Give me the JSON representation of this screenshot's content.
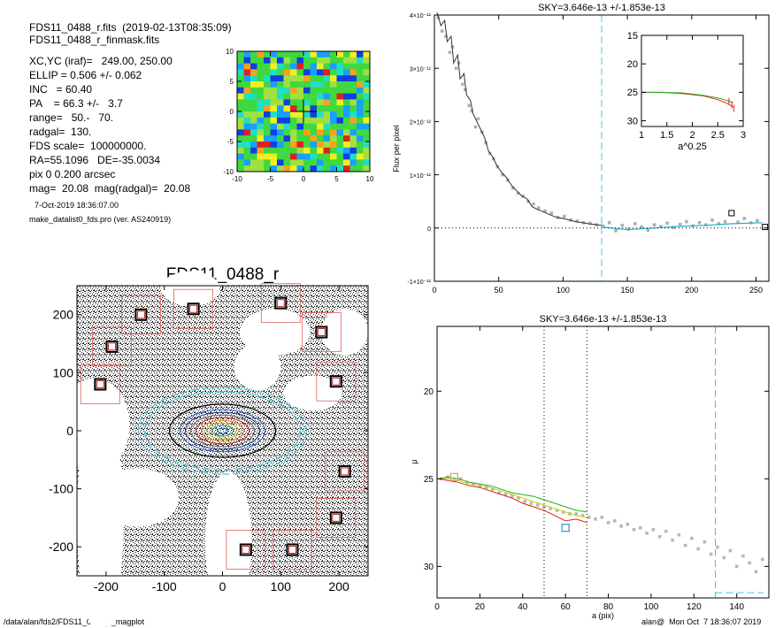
{
  "header": {
    "file_line": "FDS11_0488_r.fits  (2019-02-13T08:35:09)",
    "mask_line": "FDS11_0488_r_finmask.fits",
    "params": [
      "XC,YC (iraf)=   249.00, 250.00",
      "ELLIP = 0.506 +/- 0.062",
      "INC   = 60.40",
      "PA    = 66.3 +/-   3.7",
      "range=   50.-   70.",
      "radgal=  130.",
      "FDS scale=  100000000.",
      "RA=55.1096   DE=-35.0034",
      "pix 0 0.200 arcsec",
      "mag=  20.08  mag(radgal)=  20.08"
    ],
    "date_line": "7-Oct-2019 18:36:07.00",
    "program_line": "make_datalist0_fds.pro (ver. AS240919)"
  },
  "footer": {
    "path": "/data/alan/fds2/FDS11_0488_r_magplot",
    "user_stamp": "alan@  Mon Oct  7 18:36:07 2019"
  },
  "chart_data": [
    {
      "type": "heatmap",
      "id": "psf-map",
      "xlim": [
        -10,
        10
      ],
      "ylim": [
        -10,
        10
      ],
      "xticks": [
        -10,
        -5,
        0,
        5,
        10
      ],
      "yticks": [
        -10,
        -5,
        0,
        5,
        10
      ],
      "colors": [
        "#1040e0",
        "#18a0ff",
        "#20e0c0",
        "#40d840",
        "#a0e040",
        "#f0f020",
        "#f8a020",
        "#e02020"
      ]
    },
    {
      "type": "scatter",
      "id": "sky-profile",
      "title": "SKY=3.646e-13 +/-1.853e-13",
      "ylabel": "Flux per pixel",
      "xlim": [
        0,
        260
      ],
      "ylim": [
        -1e-12,
        4e-12
      ],
      "xticks": [
        0,
        50,
        100,
        150,
        200,
        250
      ],
      "yticks": [
        {
          "v": -1e-12,
          "label": "-1×10⁻¹²"
        },
        {
          "v": 0,
          "label": "0"
        },
        {
          "v": 1e-12,
          "label": "1×10⁻¹²"
        },
        {
          "v": 2e-12,
          "label": "2×10⁻¹²"
        },
        {
          "v": 3e-12,
          "label": "3×10⁻¹²"
        },
        {
          "v": 4e-12,
          "label": "4×10⁻¹²"
        }
      ],
      "sky_radius": 130,
      "line": [
        [
          2,
          4.05e-12
        ],
        [
          5,
          3.8e-12
        ],
        [
          8,
          3.9e-12
        ],
        [
          10,
          3.5e-12
        ],
        [
          13,
          3.6e-12
        ],
        [
          15,
          3.1e-12
        ],
        [
          18,
          3.25e-12
        ],
        [
          20,
          2.8e-12
        ],
        [
          23,
          2.9e-12
        ],
        [
          25,
          2.5e-12
        ],
        [
          28,
          2.4e-12
        ],
        [
          30,
          2.15e-12
        ],
        [
          33,
          2e-12
        ],
        [
          36,
          1.85e-12
        ],
        [
          39,
          1.7e-12
        ],
        [
          42,
          1.45e-12
        ],
        [
          45,
          1.35e-12
        ],
        [
          48,
          1.2e-12
        ],
        [
          52,
          1.05e-12
        ],
        [
          56,
          9.5e-13
        ],
        [
          60,
          8e-13
        ],
        [
          64,
          7e-13
        ],
        [
          68,
          6e-13
        ],
        [
          72,
          5.5e-13
        ],
        [
          76,
          4e-13
        ],
        [
          80,
          3.5e-13
        ],
        [
          85,
          3e-13
        ],
        [
          90,
          2.5e-13
        ],
        [
          95,
          2e-13
        ],
        [
          100,
          1.8e-13
        ],
        [
          110,
          1.2e-13
        ],
        [
          120,
          8e-14
        ],
        [
          130,
          5e-14
        ]
      ],
      "sky_line": [
        [
          130,
          2e-14
        ],
        [
          150,
          -3e-14
        ],
        [
          170,
          0.0
        ],
        [
          190,
          3e-14
        ],
        [
          210,
          5e-14
        ],
        [
          230,
          8e-14
        ],
        [
          255,
          1e-13
        ]
      ],
      "points": [
        [
          3,
          3.95e-12
        ],
        [
          6,
          3.7e-12
        ],
        [
          9,
          3.6e-12
        ],
        [
          12,
          3.3e-12
        ],
        [
          14,
          3.4e-12
        ],
        [
          17,
          3e-12
        ],
        [
          19,
          3.1e-12
        ],
        [
          22,
          2.7e-12
        ],
        [
          24,
          2.6e-12
        ],
        [
          27,
          2.3e-12
        ],
        [
          29,
          2.2e-12
        ],
        [
          32,
          1.9e-12
        ],
        [
          34,
          2.05e-12
        ],
        [
          37,
          1.8e-12
        ],
        [
          40,
          1.6e-12
        ],
        [
          43,
          1.4e-12
        ],
        [
          46,
          1.3e-12
        ],
        [
          49,
          1.15e-12
        ],
        [
          53,
          1e-12
        ],
        [
          57,
          9e-13
        ],
        [
          61,
          7.5e-13
        ],
        [
          65,
          6.5e-13
        ],
        [
          69,
          6e-13
        ],
        [
          73,
          5e-13
        ],
        [
          77,
          4.5e-13
        ],
        [
          81,
          3.8e-13
        ],
        [
          86,
          3.2e-13
        ],
        [
          91,
          2.8e-13
        ],
        [
          96,
          2e-13
        ],
        [
          101,
          2.2e-13
        ],
        [
          106,
          1.5e-13
        ],
        [
          111,
          1.3e-13
        ],
        [
          116,
          1e-13
        ],
        [
          121,
          9e-14
        ],
        [
          126,
          6e-14
        ],
        [
          131,
          4e-14
        ],
        [
          136,
          1e-13
        ],
        [
          141,
          -5e-14
        ],
        [
          146,
          5e-14
        ],
        [
          151,
          -2e-14
        ],
        [
          156,
          8e-14
        ],
        [
          161,
          2e-14
        ],
        [
          166,
          -4e-14
        ],
        [
          171,
          6e-14
        ],
        [
          176,
          3e-14
        ],
        [
          181,
          9e-14
        ],
        [
          186,
          1e-14
        ],
        [
          191,
          7e-14
        ],
        [
          196,
          1.2e-13
        ],
        [
          201,
          4e-14
        ],
        [
          206,
          1e-13
        ],
        [
          211,
          6e-14
        ],
        [
          216,
          1.5e-13
        ],
        [
          221,
          8e-14
        ],
        [
          226,
          1.2e-13
        ],
        [
          236,
          1.1e-13
        ],
        [
          241,
          1.8e-13
        ],
        [
          246,
          1e-13
        ],
        [
          251,
          1.4e-13
        ]
      ],
      "outliers": [
        [
          231,
          2.8e-13
        ],
        [
          257,
          2e-14
        ]
      ]
    },
    {
      "type": "line",
      "id": "inset-profile",
      "xlabel": "a^0.25",
      "xlim": [
        1.0,
        3.0
      ],
      "ylim": [
        15,
        31
      ],
      "xticks": [
        1.0,
        1.5,
        2.0,
        2.5,
        3.0
      ],
      "yticks": [
        15,
        20,
        25,
        30
      ],
      "series": [
        {
          "color": "#e02020",
          "values": [
            [
              1.0,
              25.0
            ],
            [
              1.4,
              25.0
            ],
            [
              1.8,
              25.2
            ],
            [
              2.2,
              25.6
            ],
            [
              2.5,
              26.3
            ],
            [
              2.7,
              27.0
            ],
            [
              2.8,
              27.6
            ]
          ]
        },
        {
          "color": "#20b020",
          "values": [
            [
              1.0,
              25.0
            ],
            [
              1.4,
              25.0
            ],
            [
              1.8,
              25.1
            ],
            [
              2.2,
              25.5
            ],
            [
              2.5,
              26.0
            ],
            [
              2.7,
              26.5
            ],
            [
              2.8,
              26.8
            ]
          ]
        }
      ]
    },
    {
      "type": "scatter",
      "id": "mu-profile",
      "title": "SKY=3.646e-13 +/-1.853e-13",
      "xlabel": "a (pix)",
      "ylabel": "μ",
      "xlim": [
        0,
        155
      ],
      "ylim": [
        31.8,
        16.3
      ],
      "xticks": [
        0,
        20,
        40,
        60,
        80,
        100,
        120,
        140
      ],
      "yticks": [
        20,
        25,
        30
      ],
      "range_lines": [
        50,
        70
      ],
      "sky_radius": 130,
      "sky_level": 31.5,
      "points": [
        [
          2,
          25.0
        ],
        [
          5,
          24.9
        ],
        [
          8,
          25.1
        ],
        [
          11,
          25.0
        ],
        [
          14,
          25.2
        ],
        [
          17,
          25.3
        ],
        [
          20,
          25.4
        ],
        [
          23,
          25.5
        ],
        [
          26,
          25.6
        ],
        [
          29,
          25.8
        ],
        [
          32,
          25.9
        ],
        [
          35,
          26.0
        ],
        [
          38,
          26.1
        ],
        [
          41,
          26.3
        ],
        [
          44,
          26.4
        ],
        [
          47,
          26.5
        ],
        [
          50,
          26.6
        ],
        [
          53,
          26.7
        ],
        [
          56,
          26.8
        ],
        [
          59,
          26.9
        ],
        [
          62,
          27.0
        ],
        [
          65,
          27.0
        ],
        [
          68,
          27.1
        ],
        [
          71,
          27.2
        ],
        [
          74,
          27.3
        ],
        [
          77,
          27.2
        ],
        [
          80,
          27.5
        ],
        [
          83,
          27.4
        ],
        [
          86,
          27.7
        ],
        [
          89,
          27.6
        ],
        [
          92,
          27.9
        ],
        [
          95,
          27.8
        ],
        [
          98,
          28.1
        ],
        [
          101,
          27.9
        ],
        [
          104,
          28.3
        ],
        [
          107,
          28.0
        ],
        [
          110,
          28.5
        ],
        [
          113,
          28.2
        ],
        [
          116,
          28.8
        ],
        [
          119,
          28.4
        ],
        [
          122,
          29.0
        ],
        [
          125,
          28.6
        ],
        [
          128,
          29.3
        ],
        [
          131,
          28.9
        ],
        [
          134,
          29.5
        ],
        [
          137,
          29.1
        ],
        [
          140,
          30.0
        ],
        [
          143,
          29.4
        ],
        [
          146,
          29.8
        ],
        [
          149,
          30.3
        ],
        [
          152,
          29.6
        ]
      ],
      "series": [
        {
          "color": "#20b020",
          "values": [
            [
              1,
              25.0
            ],
            [
              5,
              24.9
            ],
            [
              10,
              25.0
            ],
            [
              15,
              25.2
            ],
            [
              20,
              25.3
            ],
            [
              25,
              25.4
            ],
            [
              30,
              25.6
            ],
            [
              35,
              25.8
            ],
            [
              40,
              25.9
            ],
            [
              45,
              26.0
            ],
            [
              50,
              26.2
            ],
            [
              55,
              26.4
            ],
            [
              60,
              26.6
            ],
            [
              65,
              26.8
            ],
            [
              70,
              26.9
            ]
          ]
        },
        {
          "color": "#d0d000",
          "values": [
            [
              1,
              25.0
            ],
            [
              5,
              25.0
            ],
            [
              10,
              25.1
            ],
            [
              15,
              25.3
            ],
            [
              20,
              25.4
            ],
            [
              25,
              25.5
            ],
            [
              30,
              25.7
            ],
            [
              35,
              25.9
            ],
            [
              40,
              26.1
            ],
            [
              45,
              26.3
            ],
            [
              50,
              26.5
            ],
            [
              55,
              26.7
            ],
            [
              60,
              26.9
            ],
            [
              65,
              27.1
            ],
            [
              70,
              27.2
            ]
          ]
        },
        {
          "color": "#e02020",
          "values": [
            [
              1,
              25.0
            ],
            [
              5,
              25.1
            ],
            [
              10,
              25.2
            ],
            [
              15,
              25.4
            ],
            [
              20,
              25.5
            ],
            [
              25,
              25.7
            ],
            [
              30,
              25.9
            ],
            [
              35,
              26.1
            ],
            [
              40,
              26.4
            ],
            [
              45,
              26.6
            ],
            [
              50,
              26.8
            ],
            [
              55,
              27.1
            ],
            [
              60,
              27.4
            ],
            [
              65,
              27.3
            ],
            [
              70,
              27.5
            ]
          ]
        }
      ],
      "markers": [
        {
          "x": 60,
          "y": 27.8,
          "color": "#3a8fd0"
        },
        {
          "x": 8,
          "y": 24.9,
          "color": "#e0a060"
        }
      ]
    },
    {
      "type": "scatter",
      "id": "galaxy-image",
      "title": "FDS11_0488_r",
      "xlim": [
        -250,
        250
      ],
      "ylim": [
        -250,
        250
      ],
      "xticks": [
        -200,
        -100,
        0,
        100,
        200
      ],
      "yticks": [
        -200,
        -100,
        0,
        100,
        200
      ],
      "ellipse": {
        "pa_deg": 66.3,
        "ellip": 0.506,
        "radgal": 130
      },
      "masked_sources": [
        [
          -140,
          200
        ],
        [
          -50,
          210
        ],
        [
          100,
          220
        ],
        [
          170,
          170
        ],
        [
          -190,
          145
        ],
        [
          -210,
          80
        ],
        [
          195,
          85
        ],
        [
          210,
          -70
        ],
        [
          195,
          -150
        ],
        [
          40,
          -205
        ],
        [
          120,
          -205
        ]
      ]
    }
  ]
}
